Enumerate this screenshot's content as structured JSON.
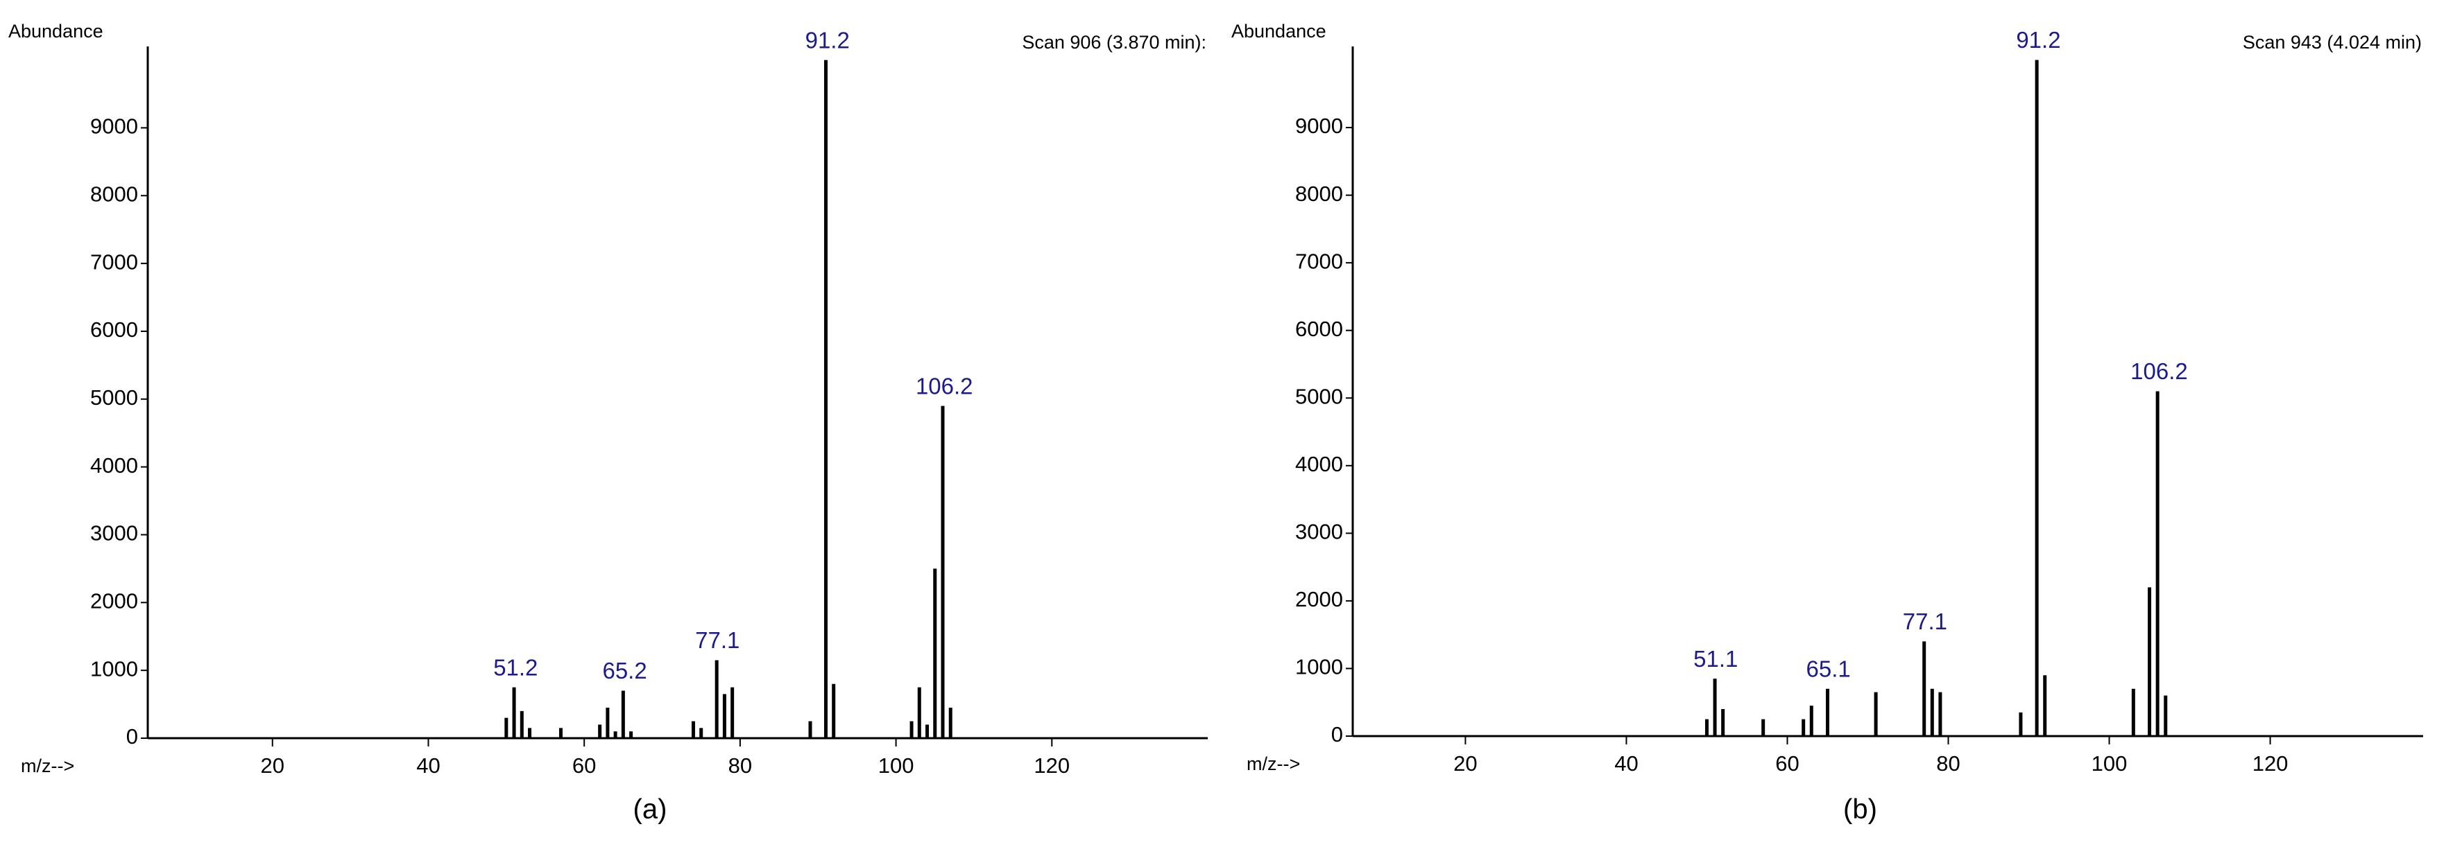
{
  "chart_data": [
    {
      "type": "bar",
      "y_label": "Abundance",
      "title": "Scan 906 (3.870 min):",
      "x_label": "m/z-->",
      "caption": "(a)",
      "x": [
        50,
        51,
        52,
        53,
        57,
        62,
        63,
        64,
        65,
        66,
        74,
        75,
        77,
        78,
        79,
        89,
        91,
        92,
        102,
        103,
        104,
        105,
        106,
        107
      ],
      "values": [
        300,
        750,
        400,
        150,
        150,
        200,
        450,
        100,
        700,
        100,
        250,
        150,
        1150,
        650,
        750,
        250,
        10000,
        800,
        250,
        750,
        200,
        2500,
        4900,
        450
      ],
      "peak_labels": [
        51.2,
        65.2,
        77.1,
        91.2,
        106.2
      ],
      "color": "#000000",
      "xlim": [
        4,
        140
      ],
      "xticks": [
        20,
        40,
        60,
        80,
        100,
        120
      ],
      "ylim": [
        0,
        10200
      ],
      "yticks": [
        0,
        1000,
        2000,
        3000,
        4000,
        5000,
        6000,
        7000,
        8000,
        9000
      ]
    },
    {
      "type": "bar",
      "y_label": "Abundance",
      "title": "Scan 943 (4.024 min)",
      "x_label": "m/z-->",
      "caption": "(b)",
      "x": [
        50,
        51,
        52,
        57,
        62,
        63,
        65,
        71,
        77,
        78,
        79,
        89,
        91,
        92,
        103,
        105,
        106,
        107
      ],
      "values": [
        250,
        850,
        400,
        250,
        250,
        450,
        700,
        650,
        1400,
        700,
        650,
        350,
        10000,
        900,
        700,
        2200,
        5100,
        600
      ],
      "peak_labels": [
        51.1,
        65.1,
        77.1,
        91.2,
        106.2
      ],
      "color": "#000000",
      "xlim": [
        6,
        139
      ],
      "xticks": [
        20,
        40,
        60,
        80,
        100,
        120
      ],
      "ylim": [
        0,
        10200
      ],
      "yticks": [
        0,
        1000,
        2000,
        3000,
        4000,
        5000,
        6000,
        7000,
        8000,
        9000
      ]
    }
  ]
}
